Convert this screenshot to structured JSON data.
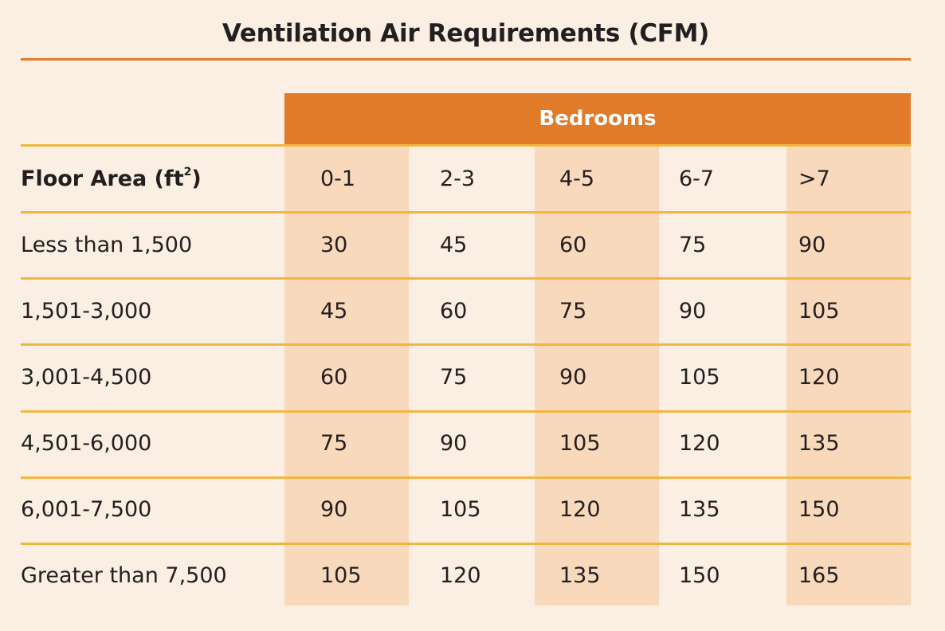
{
  "chart_data": {
    "type": "table",
    "title": "Ventilation Air Requirements (CFM)",
    "column_group_label": "Bedrooms",
    "row_header_label": "Floor Area (ft",
    "row_header_superscript": "2",
    "row_header_close": ")",
    "columns": [
      "0-1",
      "2-3",
      "4-5",
      "6-7",
      ">7"
    ],
    "rows": [
      {
        "label": "Less than 1,500",
        "values": [
          30,
          45,
          60,
          75,
          90
        ]
      },
      {
        "label": "1,501-3,000",
        "values": [
          45,
          60,
          75,
          90,
          105
        ]
      },
      {
        "label": "3,001-4,500",
        "values": [
          60,
          75,
          90,
          105,
          120
        ]
      },
      {
        "label": "4,501-6,000",
        "values": [
          75,
          90,
          105,
          120,
          135
        ]
      },
      {
        "label": "6,001-7,500",
        "values": [
          90,
          105,
          120,
          135,
          150
        ]
      },
      {
        "label": "Greater than 7,500",
        "values": [
          105,
          120,
          135,
          150,
          165
        ]
      }
    ]
  },
  "colors": {
    "accent": "#e07b2a",
    "rule": "#f2b640",
    "column_shade": "#f9d9bc",
    "background": "#fbeee2",
    "text": "#231f20"
  }
}
